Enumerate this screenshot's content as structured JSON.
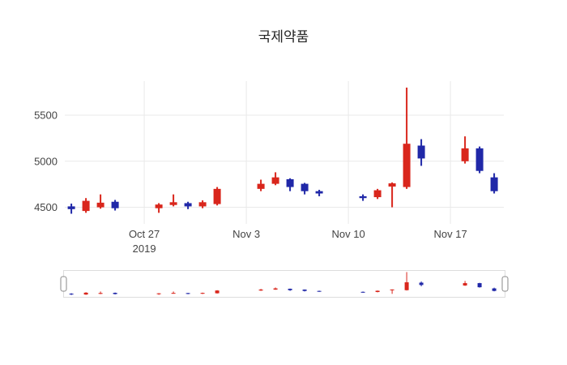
{
  "chart_data": {
    "type": "candlestick",
    "title": "국제약품",
    "grid": true,
    "rangeslider": true,
    "increasing_color": "#d9261c",
    "decreasing_color": "#2028a8",
    "grid_color": "#e9e9e9",
    "x_range": [
      "2019-10-21",
      "2019-11-21"
    ],
    "y_range": [
      4320,
      5870
    ],
    "y_ticks": [
      4500,
      5000,
      5500
    ],
    "x_ticks": [
      {
        "date": "2019-10-27",
        "label": "Oct 27",
        "sublabel": "2019"
      },
      {
        "date": "2019-11-03",
        "label": "Nov 3",
        "sublabel": ""
      },
      {
        "date": "2019-11-10",
        "label": "Nov 10",
        "sublabel": ""
      },
      {
        "date": "2019-11-17",
        "label": "Nov 17",
        "sublabel": ""
      }
    ],
    "ohlc": [
      {
        "date": "2019-10-22",
        "open": 4510,
        "high": 4540,
        "low": 4430,
        "close": 4480
      },
      {
        "date": "2019-10-23",
        "open": 4460,
        "high": 4600,
        "low": 4440,
        "close": 4570
      },
      {
        "date": "2019-10-24",
        "open": 4500,
        "high": 4640,
        "low": 4485,
        "close": 4550
      },
      {
        "date": "2019-10-25",
        "open": 4560,
        "high": 4580,
        "low": 4465,
        "close": 4490
      },
      {
        "date": "2019-10-28",
        "open": 4490,
        "high": 4545,
        "low": 4440,
        "close": 4530
      },
      {
        "date": "2019-10-29",
        "open": 4525,
        "high": 4640,
        "low": 4510,
        "close": 4555
      },
      {
        "date": "2019-10-30",
        "open": 4545,
        "high": 4560,
        "low": 4480,
        "close": 4510
      },
      {
        "date": "2019-10-31",
        "open": 4510,
        "high": 4575,
        "low": 4490,
        "close": 4555
      },
      {
        "date": "2019-11-01",
        "open": 4535,
        "high": 4720,
        "low": 4520,
        "close": 4700
      },
      {
        "date": "2019-11-04",
        "open": 4700,
        "high": 4800,
        "low": 4675,
        "close": 4755
      },
      {
        "date": "2019-11-05",
        "open": 4755,
        "high": 4880,
        "low": 4740,
        "close": 4825
      },
      {
        "date": "2019-11-06",
        "open": 4805,
        "high": 4815,
        "low": 4675,
        "close": 4720
      },
      {
        "date": "2019-11-07",
        "open": 4755,
        "high": 4765,
        "low": 4640,
        "close": 4675
      },
      {
        "date": "2019-11-08",
        "open": 4675,
        "high": 4690,
        "low": 4620,
        "close": 4650
      },
      {
        "date": "2019-11-11",
        "open": 4620,
        "high": 4640,
        "low": 4570,
        "close": 4600
      },
      {
        "date": "2019-11-12",
        "open": 4610,
        "high": 4700,
        "low": 4590,
        "close": 4685
      },
      {
        "date": "2019-11-13",
        "open": 4725,
        "high": 4770,
        "low": 4500,
        "close": 4760
      },
      {
        "date": "2019-11-14",
        "open": 4720,
        "high": 5800,
        "low": 4700,
        "close": 5190
      },
      {
        "date": "2019-11-15",
        "open": 5170,
        "high": 5240,
        "low": 4950,
        "close": 5030
      },
      {
        "date": "2019-11-18",
        "open": 5000,
        "high": 5270,
        "low": 4975,
        "close": 5140
      },
      {
        "date": "2019-11-19",
        "open": 5140,
        "high": 5160,
        "low": 4870,
        "close": 4895
      },
      {
        "date": "2019-11-20",
        "open": 4825,
        "high": 4870,
        "low": 4650,
        "close": 4675
      }
    ]
  }
}
